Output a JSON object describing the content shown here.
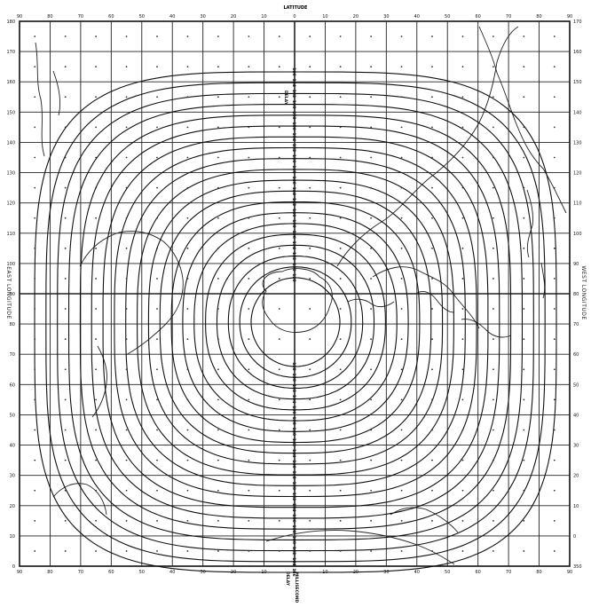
{
  "map": {
    "top_label": "LATITUDE",
    "left_label": "EAST LONGITUDE",
    "right_label": "WEST LONGITUDE",
    "top_ticks": [
      "90",
      "80",
      "70",
      "60",
      "50",
      "40",
      "30",
      "20",
      "10",
      "0",
      "10",
      "20",
      "30",
      "40",
      "50",
      "60",
      "70",
      "80",
      "90"
    ],
    "bottom_ticks": [
      "90",
      "80",
      "70",
      "60",
      "50",
      "40",
      "30",
      "20",
      "10",
      "0",
      "10",
      "20",
      "30",
      "40",
      "50",
      "60",
      "70",
      "80",
      "90"
    ],
    "left_ticks": [
      "180",
      "170",
      "160",
      "150",
      "140",
      "130",
      "120",
      "110",
      "100",
      "90",
      "80",
      "70",
      "60",
      "50",
      "40",
      "30",
      "20",
      "10",
      "0"
    ],
    "right_ticks": [
      "170",
      "160",
      "150",
      "140",
      "130",
      "120",
      "110",
      "100",
      "90",
      "80",
      "70",
      "60",
      "50",
      "40",
      "30",
      "20",
      "10",
      "0",
      "350"
    ],
    "delay_top": "DELAY",
    "delay_bottom": "DELAY",
    "units": "MILLISECOND",
    "contour_values": [
      "128",
      "130",
      "132",
      "134",
      "136",
      "138",
      "140",
      "142",
      "144",
      "146",
      "148",
      "150",
      "152",
      "154",
      "156",
      "158",
      "160",
      "162",
      "164",
      "166"
    ],
    "inner_label": "128"
  }
}
